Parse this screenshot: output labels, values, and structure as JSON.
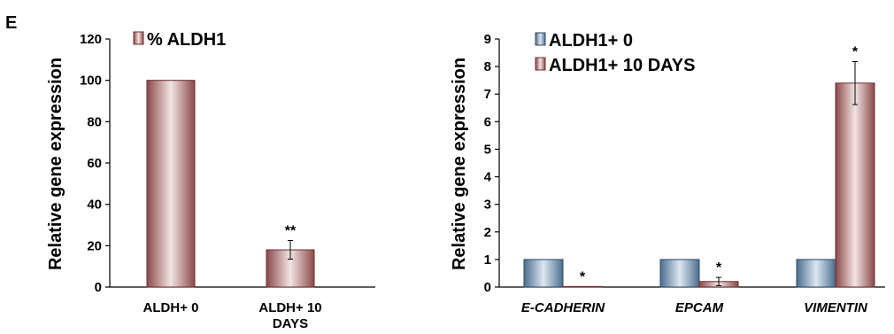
{
  "panel_label": "E",
  "colors": {
    "ald_edge": "#6b2f2f",
    "ald_dark": "#8b4a4a",
    "ald_light": "#f2e4e4",
    "blue_edge": "#2e4a66",
    "blue_dark": "#4b6d8f",
    "blue_light": "#dce7f1"
  },
  "chart_data": [
    {
      "type": "bar",
      "categories": [
        "ALDH+ 0",
        "ALDH+ 10 DAYS"
      ],
      "category_lines": [
        [
          "ALDH+ 0"
        ],
        [
          "ALDH+ 10",
          "DAYS"
        ]
      ],
      "series": [
        {
          "name": "% ALDH1",
          "values": [
            100,
            18
          ],
          "errors": [
            0,
            4.5
          ],
          "annotations": [
            "",
            "**"
          ]
        }
      ],
      "ylabel": "Relative gene expression",
      "ylim": [
        0,
        120
      ],
      "yticks": [
        0,
        20,
        40,
        60,
        80,
        100,
        120
      ],
      "legend": "top-left",
      "grid": false
    },
    {
      "type": "bar",
      "categories": [
        "E-CADHERIN",
        "EPCAM",
        "VIMENTIN"
      ],
      "category_style": "italic",
      "series": [
        {
          "name": "ALDH1+ 0",
          "values": [
            1,
            1,
            1
          ],
          "errors": [
            0,
            0,
            0
          ],
          "annotations": [
            "",
            "",
            ""
          ]
        },
        {
          "name": "ALDH1+ 10 DAYS",
          "values": [
            0.02,
            0.2,
            7.4
          ],
          "errors": [
            0,
            0.15,
            0.78
          ],
          "annotations": [
            "*",
            "*",
            "*"
          ]
        }
      ],
      "ylabel": "Relative gene expression",
      "ylim": [
        0,
        9
      ],
      "yticks": [
        0,
        1,
        2,
        3,
        4,
        5,
        6,
        7,
        8,
        9
      ],
      "legend": "top-left",
      "grid": false
    }
  ]
}
